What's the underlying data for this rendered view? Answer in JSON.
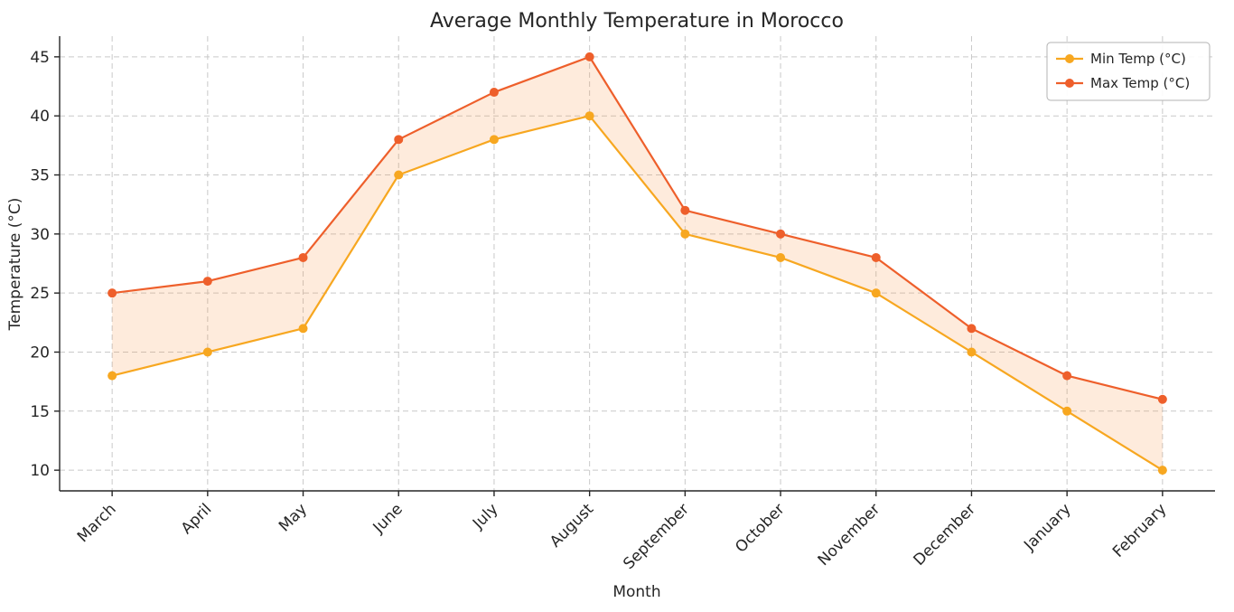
{
  "chart_data": {
    "type": "line",
    "title": "Average Monthly Temperature in Morocco",
    "xlabel": "Month",
    "ylabel": "Temperature (°C)",
    "categories": [
      "March",
      "April",
      "May",
      "June",
      "July",
      "August",
      "September",
      "October",
      "November",
      "December",
      "January",
      "February"
    ],
    "series": [
      {
        "name": "Min Temp (°C)",
        "color": "#F7A720",
        "values": [
          18,
          20,
          22,
          35,
          38,
          40,
          30,
          28,
          25,
          20,
          15,
          10
        ]
      },
      {
        "name": "Max Temp (°C)",
        "color": "#EE5F2B",
        "values": [
          25,
          26,
          28,
          38,
          42,
          45,
          32,
          30,
          28,
          22,
          18,
          16
        ]
      }
    ],
    "fill_between": {
      "color": "#FB923C",
      "opacity": 0.18
    },
    "yticks": [
      10,
      15,
      20,
      25,
      30,
      35,
      40,
      45
    ],
    "ylim": [
      8.25,
      46.75
    ],
    "grid": true,
    "grid_style": "dashed",
    "grid_color": "#c9c9c9",
    "axis_color": "#262626",
    "legend_position": "top-right"
  }
}
